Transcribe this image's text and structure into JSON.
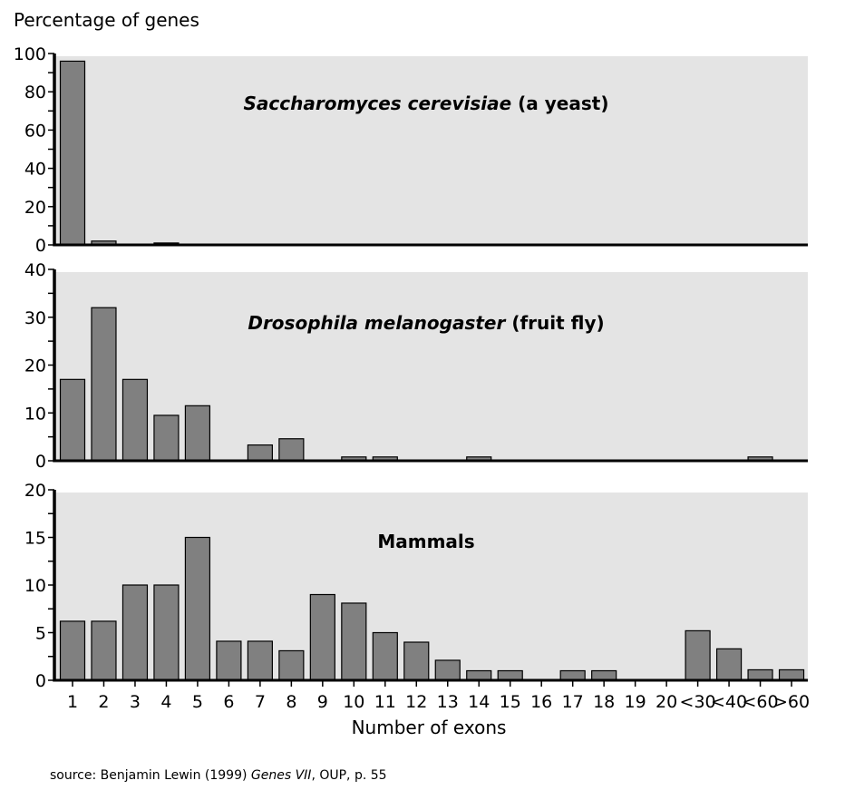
{
  "chart_data": {
    "type": "bar",
    "ylabel": "Percentage of genes",
    "xlabel": "Number of exons",
    "source": {
      "prefix": "source: Benjamin Lewin (1999) ",
      "title": "Genes VII",
      "suffix": ", OUP, p. 55"
    },
    "colors": {
      "bar": "#808080",
      "panel_bg": "#e4e4e4",
      "axis": "#000000"
    },
    "grid": false,
    "categories": [
      "1",
      "2",
      "3",
      "4",
      "5",
      "6",
      "7",
      "8",
      "9",
      "10",
      "11",
      "12",
      "13",
      "14",
      "15",
      "16",
      "17",
      "18",
      "19",
      "20",
      "<30",
      "<40",
      "<60",
      ">60"
    ],
    "panels": [
      {
        "title_italic": "Saccharomyces cerevisiae",
        "title_rest": " (a yeast)",
        "ylim": [
          0,
          100
        ],
        "major_ticks": [
          0,
          20,
          40,
          60,
          80,
          100
        ],
        "minor_step": 10,
        "values": [
          96,
          2,
          0,
          1,
          0,
          0,
          0,
          0,
          0,
          0,
          0,
          0,
          0,
          0,
          0,
          0,
          0,
          0,
          0,
          0,
          0,
          0,
          0,
          0
        ]
      },
      {
        "title_italic": "Drosophila melanogaster",
        "title_rest": " (fruit fly)",
        "ylim": [
          0,
          40
        ],
        "major_ticks": [
          0,
          10,
          20,
          30,
          40
        ],
        "minor_step": 5,
        "values": [
          17,
          32,
          17,
          9.5,
          11.5,
          0,
          3.3,
          4.6,
          0,
          0.8,
          0.8,
          0,
          0,
          0.8,
          0,
          0,
          0,
          0,
          0,
          0,
          0,
          0,
          0.8,
          0
        ]
      },
      {
        "title_italic": "",
        "title_rest": "Mammals",
        "ylim": [
          0,
          20
        ],
        "major_ticks": [
          0,
          5,
          10,
          15,
          20
        ],
        "minor_step": 2.5,
        "values": [
          6.2,
          6.2,
          10,
          10,
          15,
          4.1,
          4.1,
          3.1,
          9,
          8.1,
          5,
          4,
          2.1,
          1,
          1,
          0,
          1,
          1,
          0,
          0,
          5.2,
          3.3,
          1.1,
          1.1
        ]
      }
    ]
  }
}
